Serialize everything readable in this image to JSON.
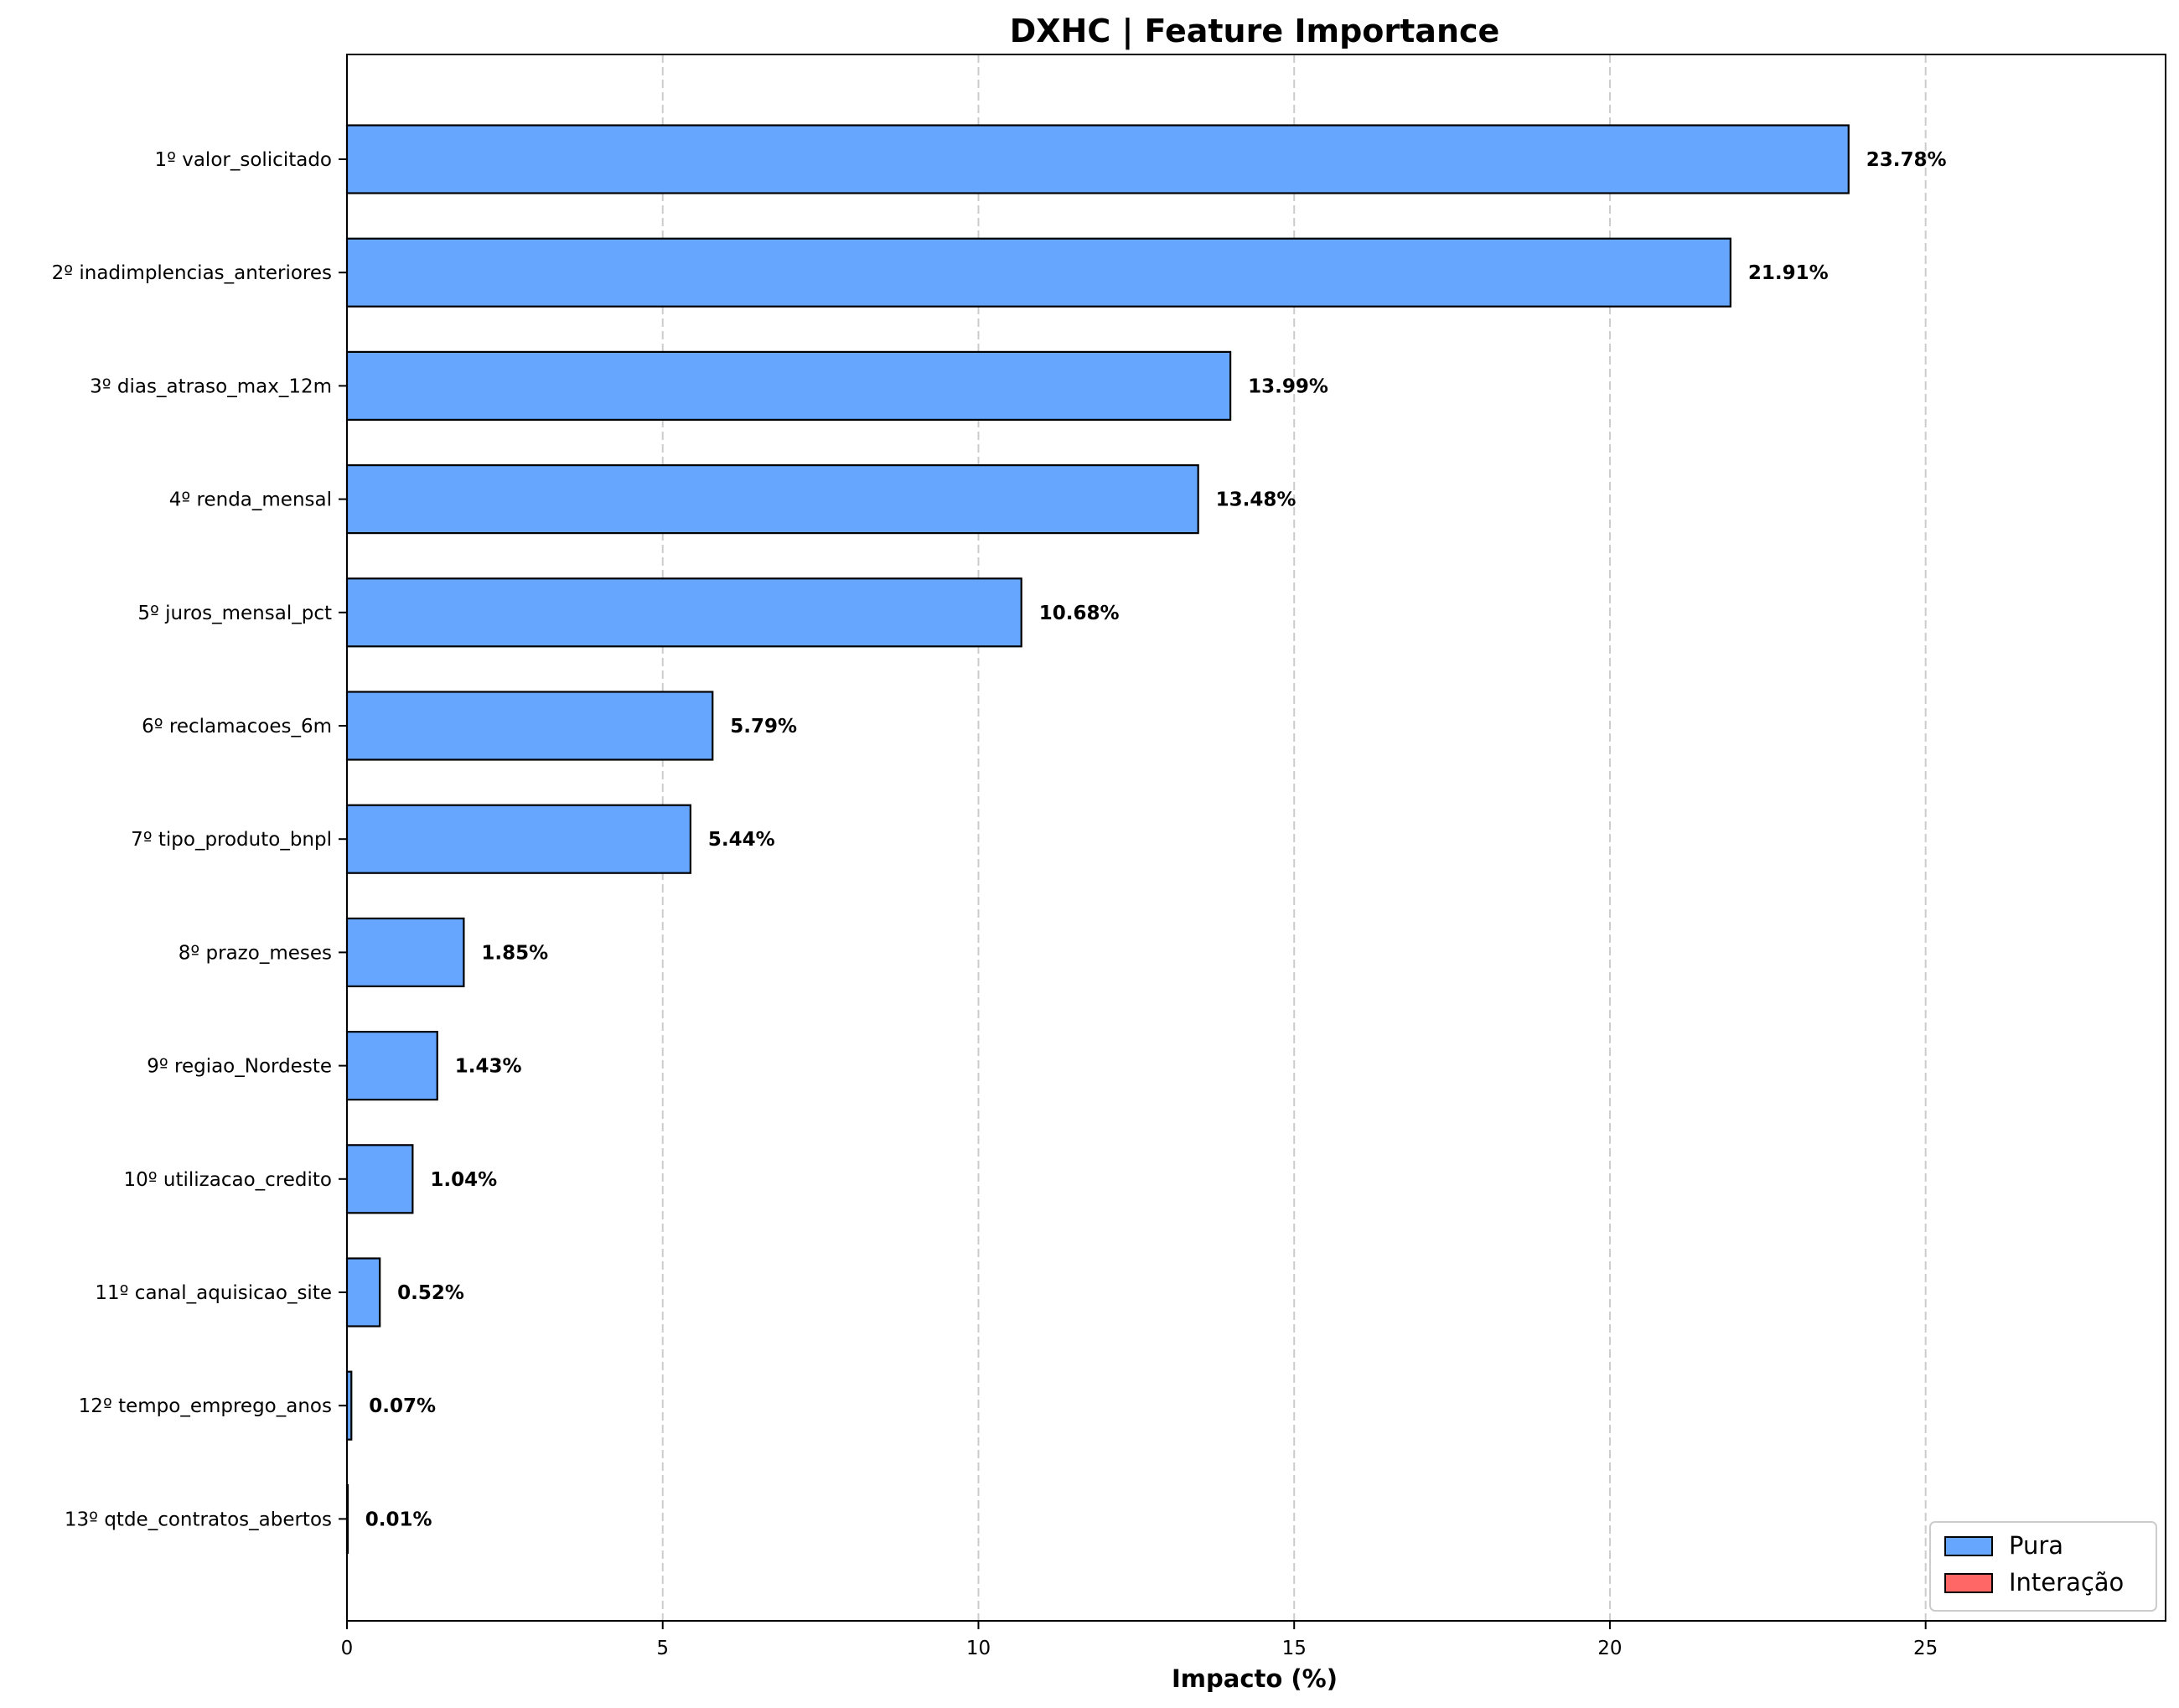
{
  "chart_data": {
    "type": "bar",
    "orientation": "horizontal",
    "title": "DXHC | Feature Importance",
    "xlabel": "Impacto (%)",
    "ylabel": "",
    "xlim": [
      0,
      28.8
    ],
    "xticks": [
      0,
      5,
      10,
      15,
      20,
      25
    ],
    "grid": "x dashed",
    "legend_position": "lower-right",
    "categories": [
      "1º valor_solicitado",
      "2º inadimplencias_anteriores",
      "3º dias_atraso_max_12m",
      "4º renda_mensal",
      "5º juros_mensal_pct",
      "6º reclamacoes_6m",
      "7º tipo_produto_bnpl",
      "8º prazo_meses",
      "9º regiao_Nordeste",
      "10º utilizacao_credito",
      "11º canal_aquisicao_site",
      "12º tempo_emprego_anos",
      "13º qtde_contratos_abertos"
    ],
    "values": [
      23.78,
      21.91,
      13.99,
      13.48,
      10.68,
      5.79,
      5.44,
      1.85,
      1.43,
      1.04,
      0.52,
      0.07,
      0.01
    ],
    "value_labels": [
      "23.78%",
      "21.91%",
      "13.99%",
      "13.48%",
      "10.68%",
      "5.79%",
      "5.44%",
      "1.85%",
      "1.43%",
      "1.04%",
      "0.52%",
      "0.07%",
      "0.01%"
    ],
    "bar_types": [
      "Pura",
      "Pura",
      "Pura",
      "Pura",
      "Pura",
      "Pura",
      "Pura",
      "Pura",
      "Pura",
      "Pura",
      "Pura",
      "Pura",
      "Pura"
    ],
    "legend": [
      {
        "name": "Pura",
        "color": "#66a6ff"
      },
      {
        "name": "Interação",
        "color": "#ff6666"
      }
    ],
    "colors": {
      "edge": "#000000",
      "grid": "#cccccc"
    }
  }
}
